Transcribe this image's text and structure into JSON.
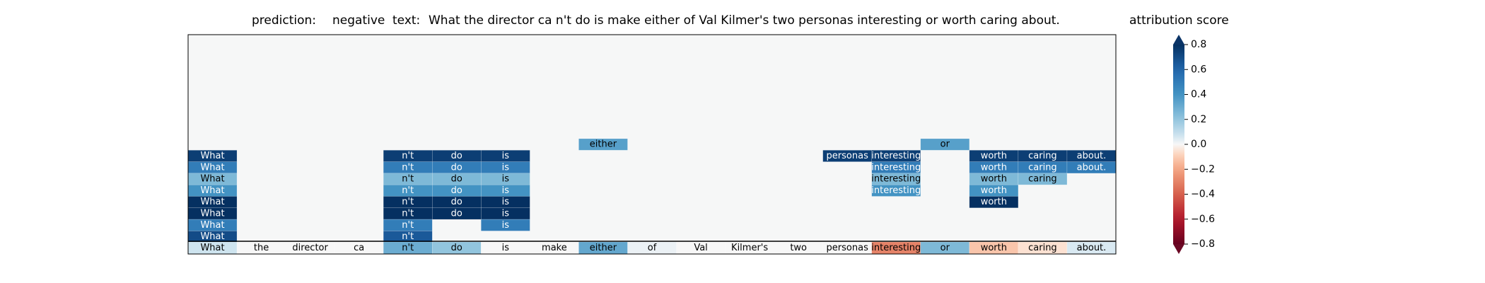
{
  "chart_data": {
    "type": "heatmap",
    "prediction_label": "prediction:",
    "prediction_value": "negative",
    "text_label": "text:",
    "text_value": "What the director ca n't do is make either of Val Kilmer's two personas interesting or worth caring about.",
    "colorbar_label": "attribution score",
    "colorbar_range": [
      -0.8,
      0.8
    ],
    "colorbar_ticks": [
      "0.8",
      "0.6",
      "0.4",
      "0.2",
      "0.0",
      "−0.2",
      "−0.4",
      "−0.6",
      "−0.8"
    ],
    "colorbar_tick_values": [
      0.8,
      0.6,
      0.4,
      0.2,
      0.0,
      -0.2,
      -0.4,
      -0.6,
      -0.8
    ],
    "tokens": [
      "What",
      "the",
      "director",
      "ca",
      "n't",
      "do",
      "is",
      "make",
      "either",
      "of",
      "Val",
      "Kilmer's",
      "two",
      "personas",
      "interesting",
      "or",
      "worth",
      "caring",
      "about."
    ],
    "base_row": [
      0.07,
      0.0,
      0.0,
      0.0,
      0.3,
      0.2,
      0.0,
      0.0,
      0.32,
      0.02,
      0.0,
      0.0,
      0.0,
      0.0,
      -0.3,
      0.25,
      -0.12,
      -0.05,
      0.05
    ],
    "rows": [
      [
        null,
        null,
        null,
        null,
        null,
        null,
        null,
        null,
        0.35,
        null,
        null,
        null,
        null,
        null,
        null,
        0.35,
        null,
        null,
        null
      ],
      [
        0.75,
        null,
        null,
        null,
        0.75,
        0.75,
        0.75,
        null,
        null,
        null,
        null,
        null,
        null,
        0.75,
        0.75,
        null,
        0.75,
        0.75,
        0.75
      ],
      [
        0.5,
        null,
        null,
        null,
        0.5,
        0.5,
        0.5,
        null,
        null,
        null,
        null,
        null,
        null,
        null,
        0.5,
        null,
        0.5,
        0.5,
        0.5
      ],
      [
        0.25,
        null,
        null,
        null,
        0.25,
        0.25,
        0.25,
        null,
        null,
        null,
        null,
        null,
        null,
        null,
        0.25,
        null,
        0.25,
        0.25,
        null
      ],
      [
        0.4,
        null,
        null,
        null,
        0.4,
        0.4,
        0.4,
        null,
        null,
        null,
        null,
        null,
        null,
        null,
        0.4,
        null,
        0.4,
        null,
        null
      ],
      [
        0.85,
        null,
        null,
        null,
        0.85,
        0.85,
        0.85,
        null,
        null,
        null,
        null,
        null,
        null,
        null,
        null,
        null,
        0.85,
        null,
        null
      ],
      [
        0.8,
        null,
        null,
        null,
        0.9,
        0.9,
        0.8,
        null,
        null,
        null,
        null,
        null,
        null,
        null,
        null,
        null,
        null,
        null,
        null
      ],
      [
        0.5,
        null,
        null,
        null,
        0.5,
        null,
        0.5,
        null,
        null,
        null,
        null,
        null,
        null,
        null,
        null,
        null,
        null,
        null,
        null
      ],
      [
        0.7,
        null,
        null,
        null,
        0.65,
        null,
        null,
        null,
        null,
        null,
        null,
        null,
        null,
        null,
        null,
        null,
        null,
        null,
        null
      ]
    ]
  }
}
